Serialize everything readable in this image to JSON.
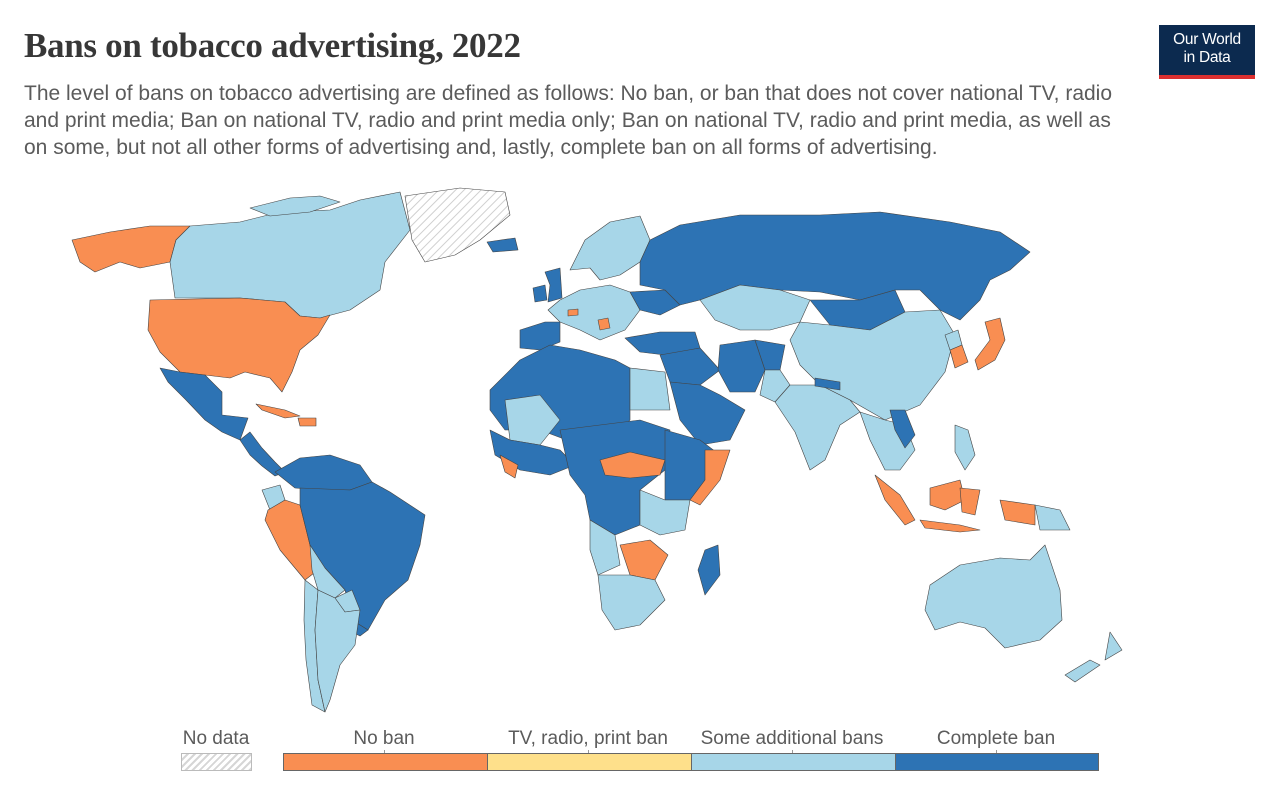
{
  "header": {
    "title": "Bans on tobacco advertising, 2022",
    "subtitle": "The level of bans on tobacco advertising are defined as follows: No ban, or ban that does not cover national TV, radio and print media; Ban on national TV, radio and print media only; Ban on national TV, radio and print media, as well as on some, but not all other forms of advertising and, lastly, complete ban on all forms of advertising."
  },
  "logo": {
    "line1": "Our World",
    "line2": "in Data"
  },
  "colors": {
    "no_data": "#e8e8e8",
    "no_ban": "#f98e52",
    "tv_radio_print_ban": "#fee08b",
    "some_additional_bans": "#a7d6e8",
    "complete_ban": "#2d73b4",
    "border": "#444444",
    "logo_bg": "#0c2a4f",
    "logo_accent": "#dc2f2f"
  },
  "legend": {
    "no_data": "No data",
    "categories": [
      {
        "label": "No ban",
        "color": "#f98e52"
      },
      {
        "label": "TV, radio, print ban",
        "color": "#fee08b"
      },
      {
        "label": "Some additional bans",
        "color": "#a7d6e8"
      },
      {
        "label": "Complete ban",
        "color": "#2d73b4"
      }
    ]
  },
  "map_regions": {
    "Alaska": "No ban",
    "Canada": "Some additional bans",
    "Greenland": "No data",
    "United States": "No ban",
    "Mexico": "Complete ban",
    "Central America": "Complete ban",
    "Cuba": "No ban",
    "Hispaniola": "No ban",
    "Venezuela & Guianas": "Complete ban",
    "Colombia": "Complete ban",
    "Ecuador": "Some additional bans",
    "Peru": "No ban",
    "Brazil": "Complete ban",
    "Bolivia": "Some additional bans",
    "Paraguay": "Some additional bans",
    "Uruguay": "Complete ban",
    "Chile": "Some additional bans",
    "Argentina": "Some additional bans",
    "Iceland": "Complete ban",
    "United Kingdom": "Complete ban",
    "Ireland": "Complete ban",
    "Scandinavia": "Some additional bans",
    "Western Europe": "Some additional bans",
    "Spain & Portugal": "Complete ban",
    "Switzerland": "No ban",
    "Bosnia": "No ban",
    "Ukraine": "Complete ban",
    "Turkey": "Complete ban",
    "Russia": "Complete ban",
    "Kazakhstan": "Some additional bans",
    "Mongolia": "Complete ban",
    "China": "Some additional bans",
    "North Korea": "Some additional bans",
    "South Korea": "No ban",
    "Japan": "No ban",
    "Middle East": "Complete ban",
    "Saudi Arabia": "Complete ban",
    "Iran": "Complete ban",
    "Afghanistan": "Complete ban",
    "Pakistan": "Some additional bans",
    "India": "Some additional bans",
    "Nepal": "Complete ban",
    "Southeast Asia mainland": "Some additional bans",
    "Laos": "Complete ban",
    "Philippines": "Some additional bans",
    "Indonesia": "No ban",
    "Papua New Guinea": "Some additional bans",
    "Australia": "Some additional bans",
    "New Zealand": "Some additional bans",
    "North Africa": "Complete ban",
    "Egypt": "Some additional bans",
    "Mali": "Some additional bans",
    "West Africa coast": "Complete ban",
    "Sierra Leone & Liberia": "No ban",
    "Central Africa": "Complete ban",
    "South Sudan & CAR": "No ban",
    "Somalia": "No ban",
    "Ethiopia & East Africa": "Complete ban",
    "Tanzania": "Some additional bans",
    "Angola": "Some additional bans",
    "Zambia & Zimbabwe": "No ban",
    "Southern Africa": "Some additional bans",
    "Madagascar": "Complete ban"
  }
}
